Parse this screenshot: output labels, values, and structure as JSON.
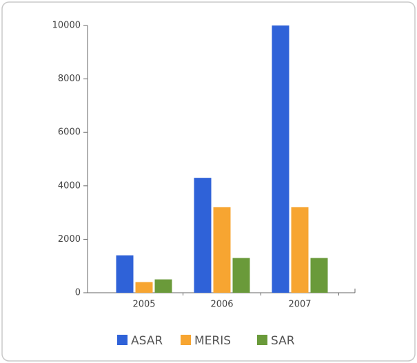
{
  "chart_data": {
    "type": "bar",
    "categories": [
      "2005",
      "2006",
      "2007"
    ],
    "series": [
      {
        "name": "ASAR",
        "color": "#2f62d8",
        "values": [
          1400,
          4300,
          10000
        ]
      },
      {
        "name": "MERIS",
        "color": "#f7a531",
        "values": [
          400,
          3200,
          3200
        ]
      },
      {
        "name": "SAR",
        "color": "#6a9a3a",
        "values": [
          500,
          1300,
          1300
        ]
      }
    ],
    "ylim": [
      0,
      10000
    ],
    "yticks": [
      0,
      2000,
      4000,
      6000,
      8000,
      10000
    ],
    "legend": "bottom"
  }
}
